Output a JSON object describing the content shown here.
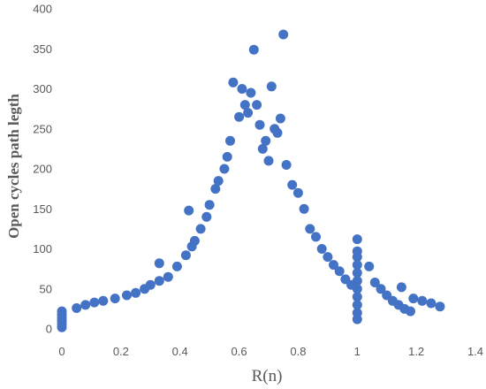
{
  "chart_data": {
    "type": "scatter",
    "title": "",
    "xlabel": "R(n)",
    "ylabel": "Open cycles path legth",
    "xlim": [
      0,
      1.4
    ],
    "ylim": [
      0,
      400
    ],
    "x_ticks": [
      "0",
      "0.2",
      "0.4",
      "0.6",
      "0.8",
      "1",
      "1.2",
      "1.4"
    ],
    "y_ticks": [
      "0",
      "50",
      "100",
      "150",
      "200",
      "250",
      "300",
      "350",
      "400"
    ],
    "grid": false,
    "legend": "none",
    "marker_color": "#4472C4",
    "series": [
      {
        "values": [
          [
            0.0,
            2
          ],
          [
            0.0,
            6
          ],
          [
            0.0,
            10
          ],
          [
            0.0,
            14
          ],
          [
            0.0,
            18
          ],
          [
            0.0,
            22
          ],
          [
            0.05,
            26
          ],
          [
            0.08,
            30
          ],
          [
            0.11,
            33
          ],
          [
            0.14,
            35
          ],
          [
            0.18,
            38
          ],
          [
            0.22,
            42
          ],
          [
            0.25,
            45
          ],
          [
            0.28,
            50
          ],
          [
            0.3,
            55
          ],
          [
            0.33,
            60
          ],
          [
            0.33,
            82
          ],
          [
            0.36,
            65
          ],
          [
            0.39,
            78
          ],
          [
            0.42,
            92
          ],
          [
            0.44,
            103
          ],
          [
            0.45,
            110
          ],
          [
            0.43,
            148
          ],
          [
            0.47,
            125
          ],
          [
            0.49,
            140
          ],
          [
            0.5,
            155
          ],
          [
            0.52,
            175
          ],
          [
            0.53,
            185
          ],
          [
            0.55,
            200
          ],
          [
            0.56,
            215
          ],
          [
            0.57,
            235
          ],
          [
            0.58,
            308
          ],
          [
            0.6,
            265
          ],
          [
            0.61,
            300
          ],
          [
            0.62,
            280
          ],
          [
            0.63,
            270
          ],
          [
            0.64,
            295
          ],
          [
            0.65,
            349
          ],
          [
            0.66,
            280
          ],
          [
            0.67,
            255
          ],
          [
            0.68,
            225
          ],
          [
            0.69,
            235
          ],
          [
            0.7,
            210
          ],
          [
            0.71,
            303
          ],
          [
            0.72,
            250
          ],
          [
            0.73,
            245
          ],
          [
            0.74,
            263
          ],
          [
            0.75,
            368
          ],
          [
            0.76,
            205
          ],
          [
            0.78,
            180
          ],
          [
            0.8,
            170
          ],
          [
            0.82,
            150
          ],
          [
            0.84,
            125
          ],
          [
            0.86,
            115
          ],
          [
            0.88,
            100
          ],
          [
            0.9,
            90
          ],
          [
            0.92,
            80
          ],
          [
            0.94,
            72
          ],
          [
            0.96,
            62
          ],
          [
            0.98,
            55
          ],
          [
            1.0,
            112
          ],
          [
            1.0,
            97
          ],
          [
            1.0,
            90
          ],
          [
            1.0,
            80
          ],
          [
            1.0,
            70
          ],
          [
            1.0,
            60
          ],
          [
            1.0,
            50
          ],
          [
            1.0,
            40
          ],
          [
            1.0,
            30
          ],
          [
            1.0,
            20
          ],
          [
            1.0,
            12
          ],
          [
            1.04,
            78
          ],
          [
            1.06,
            58
          ],
          [
            1.08,
            50
          ],
          [
            1.1,
            42
          ],
          [
            1.12,
            35
          ],
          [
            1.14,
            30
          ],
          [
            1.16,
            25
          ],
          [
            1.18,
            22
          ],
          [
            1.15,
            52
          ],
          [
            1.19,
            38
          ],
          [
            1.22,
            35
          ],
          [
            1.25,
            32
          ],
          [
            1.28,
            28
          ]
        ]
      }
    ]
  }
}
